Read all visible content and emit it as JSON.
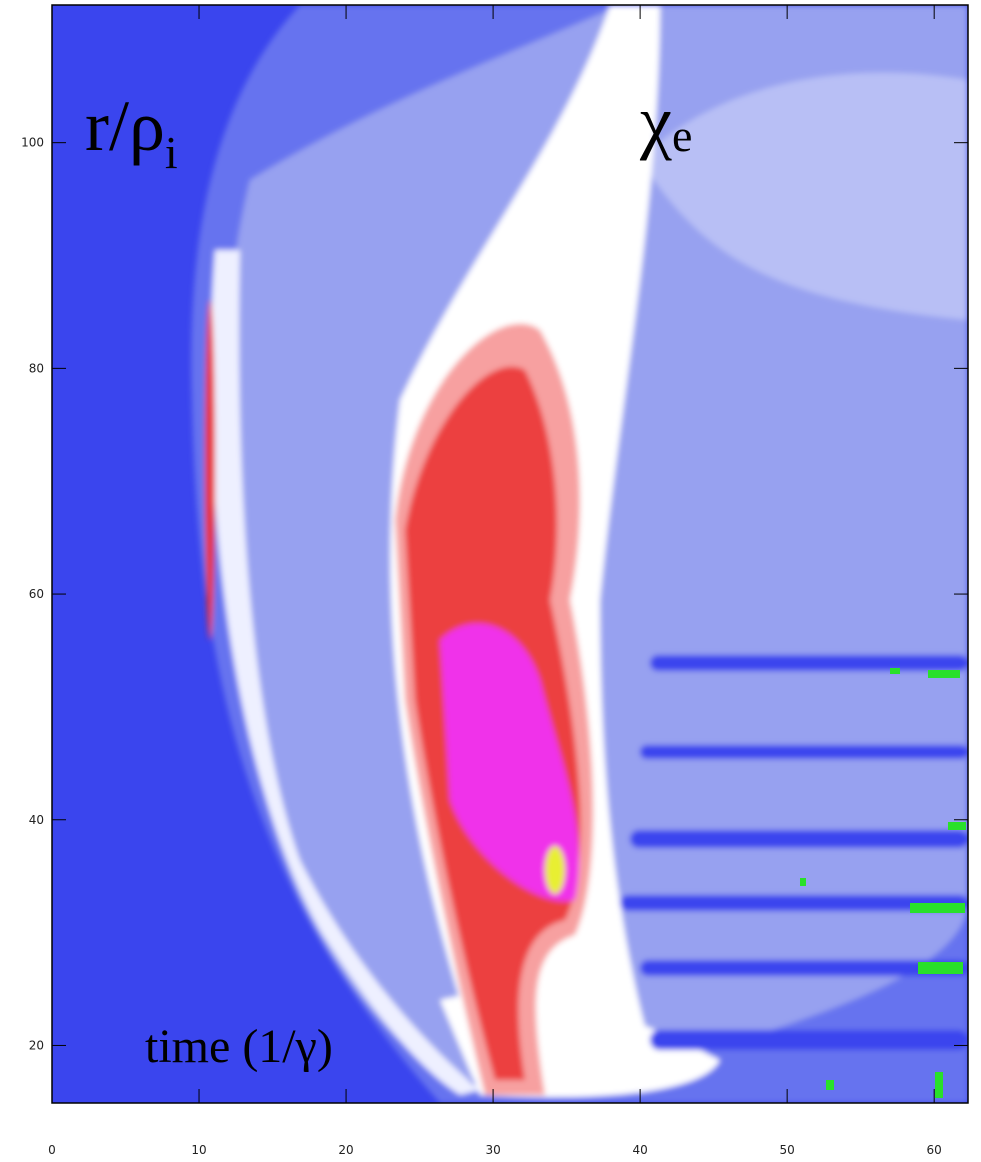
{
  "chart_data": {
    "type": "contour",
    "xlim": [
      0,
      62.3
    ],
    "xticks": [
      0,
      10,
      20,
      30,
      40,
      50,
      60
    ],
    "ylim": [
      14.9,
      112.2
    ],
    "yticks": [
      20,
      40,
      60,
      80,
      100
    ],
    "annotations": [
      {
        "text": "r/ρ",
        "sub": "i"
      },
      {
        "text": "χ",
        "sub": "e"
      },
      {
        "text": "time (1/γ)"
      }
    ]
  }
}
